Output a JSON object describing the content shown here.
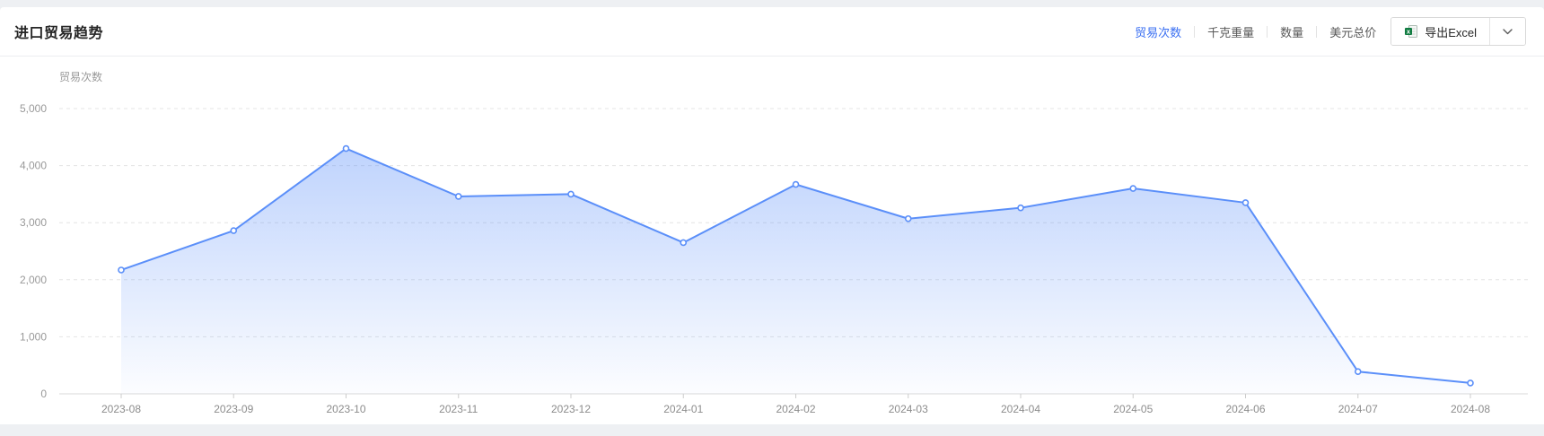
{
  "header": {
    "title": "进口贸易趋势",
    "tabs": [
      {
        "label": "贸易次数",
        "active": true
      },
      {
        "label": "千克重量",
        "active": false
      },
      {
        "label": "数量",
        "active": false
      },
      {
        "label": "美元总价",
        "active": false
      }
    ],
    "export": {
      "label": "导出Excel",
      "icon": "excel-file-icon",
      "dropdown_icon": "chevron-down-icon"
    }
  },
  "colors": {
    "tab_active": "#3a6ff2",
    "line": "#5b8ff9",
    "area_top": "rgba(91,143,249,0.45)",
    "area_bottom": "rgba(91,143,249,0.02)",
    "excel_green": "#107c41",
    "grid": "#e4e4e4",
    "axis_line": "#d9d9d9",
    "axis_text": "#999999",
    "x_text": "#8c8c8c"
  },
  "chart_data": {
    "type": "area",
    "y_axis_name": "贸易次数",
    "categories": [
      "2023-08",
      "2023-09",
      "2023-10",
      "2023-11",
      "2023-12",
      "2024-01",
      "2024-02",
      "2024-03",
      "2024-04",
      "2024-05",
      "2024-06",
      "2024-07",
      "2024-08"
    ],
    "series": [
      {
        "name": "贸易次数",
        "values": [
          2170,
          2860,
          4300,
          3460,
          3500,
          2650,
          3670,
          3070,
          3260,
          3600,
          3350,
          390,
          190
        ]
      }
    ],
    "ylim": [
      0,
      5000
    ],
    "y_ticks": [
      0,
      1000,
      2000,
      3000,
      4000,
      5000
    ],
    "grid": "horizontal-dashed",
    "legend": "none",
    "markers": "hollow-circle",
    "smooth": false
  }
}
